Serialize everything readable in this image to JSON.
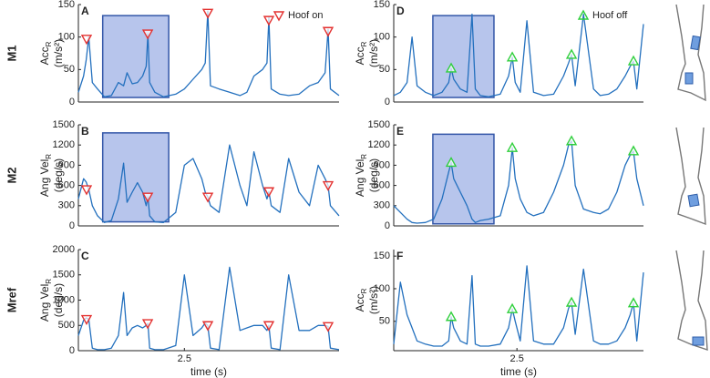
{
  "chart_data": [
    {
      "type": "line",
      "label": "A",
      "row_label": "M1",
      "ylabel": "Acc",
      "ylabel_sub": "R",
      "ylabel_unit": "(m/s²)",
      "xlim": [
        1.89,
        3.39
      ],
      "ylim": [
        0,
        150
      ],
      "yticks": [
        0,
        50,
        100,
        150
      ],
      "highlight_x": [
        2.03,
        2.41
      ],
      "highlight_y": [
        7,
        133
      ],
      "highlight_color": "#b7c5ec",
      "x": [
        1.89,
        1.92,
        1.935,
        1.95,
        1.97,
        2.0,
        2.04,
        2.08,
        2.12,
        2.15,
        2.17,
        2.2,
        2.23,
        2.26,
        2.28,
        2.29,
        2.3,
        2.33,
        2.38,
        2.45,
        2.5,
        2.55,
        2.6,
        2.62,
        2.635,
        2.65,
        2.7,
        2.76,
        2.82,
        2.86,
        2.9,
        2.95,
        2.975,
        2.986,
        3.0,
        3.05,
        3.1,
        3.16,
        3.22,
        3.27,
        3.31,
        3.327,
        3.34,
        3.39
      ],
      "series": [
        {
          "color": "#2370be",
          "values": [
            15,
            40,
            65,
            100,
            30,
            20,
            8,
            10,
            30,
            25,
            45,
            28,
            30,
            40,
            55,
            105,
            30,
            15,
            8,
            12,
            20,
            35,
            50,
            60,
            140,
            25,
            20,
            15,
            10,
            15,
            40,
            50,
            60,
            130,
            20,
            12,
            10,
            12,
            25,
            30,
            45,
            112,
            20,
            10
          ]
        },
        {
          "name": "Hoof on",
          "color": "#e3302f",
          "marker": "triangle-down",
          "x": [
            1.937,
            2.289,
            2.635,
            2.986,
            3.327
          ],
          "values": [
            97,
            105,
            137,
            126,
            109
          ]
        }
      ]
    },
    {
      "type": "line",
      "label": "B",
      "row_label": "M2",
      "ylabel": "Ang Vel",
      "ylabel_sub": "R",
      "ylabel_unit": "(deg/s)",
      "xlim": [
        1.89,
        3.39
      ],
      "ylim": [
        0,
        1500
      ],
      "yticks": [
        0,
        300,
        600,
        900,
        1200,
        1500
      ],
      "highlight_x": [
        2.03,
        2.41
      ],
      "highlight_y": [
        60,
        1380
      ],
      "highlight_color": "#b7c5ec",
      "x": [
        1.89,
        1.92,
        1.935,
        1.95,
        1.97,
        2.0,
        2.04,
        2.08,
        2.12,
        2.15,
        2.17,
        2.2,
        2.23,
        2.26,
        2.28,
        2.29,
        2.3,
        2.33,
        2.38,
        2.45,
        2.5,
        2.55,
        2.6,
        2.62,
        2.635,
        2.65,
        2.7,
        2.76,
        2.82,
        2.86,
        2.9,
        2.95,
        2.975,
        2.986,
        3.0,
        3.05,
        3.1,
        3.16,
        3.22,
        3.27,
        3.31,
        3.327,
        3.34,
        3.39
      ],
      "series": [
        {
          "color": "#2370be",
          "values": [
            400,
            700,
            650,
            540,
            300,
            150,
            50,
            80,
            400,
            930,
            350,
            500,
            640,
            500,
            300,
            430,
            150,
            60,
            50,
            200,
            900,
            1000,
            700,
            500,
            430,
            300,
            200,
            1200,
            600,
            300,
            1100,
            600,
            400,
            510,
            300,
            200,
            1000,
            500,
            300,
            900,
            700,
            600,
            300,
            150
          ]
        },
        {
          "color": "#e3302f",
          "marker": "triangle-down",
          "x": [
            1.937,
            2.289,
            2.635,
            2.986,
            3.327
          ],
          "values": [
            540,
            430,
            430,
            510,
            600
          ]
        }
      ]
    },
    {
      "type": "line",
      "label": "C",
      "row_label": "Mref",
      "ylabel": "Ang Vel",
      "ylabel_sub": "R",
      "ylabel_unit": "(deg/s)",
      "xlabel": "time (s)",
      "xlim": [
        1.89,
        3.39
      ],
      "ylim": [
        0,
        2000
      ],
      "yticks": [
        0,
        500,
        1000,
        1500,
        2000
      ],
      "xticks": [
        2.5
      ],
      "x": [
        1.89,
        1.92,
        1.935,
        1.95,
        1.97,
        2.0,
        2.04,
        2.08,
        2.12,
        2.15,
        2.17,
        2.2,
        2.23,
        2.26,
        2.28,
        2.29,
        2.3,
        2.33,
        2.38,
        2.45,
        2.5,
        2.55,
        2.6,
        2.62,
        2.635,
        2.65,
        2.7,
        2.76,
        2.82,
        2.86,
        2.9,
        2.95,
        2.975,
        2.986,
        3.0,
        3.05,
        3.1,
        3.16,
        3.22,
        3.27,
        3.31,
        3.327,
        3.34,
        3.39
      ],
      "series": [
        {
          "color": "#2370be",
          "values": [
            300,
            600,
            650,
            620,
            50,
            20,
            20,
            50,
            300,
            1150,
            300,
            450,
            500,
            450,
            500,
            540,
            50,
            20,
            20,
            100,
            1500,
            300,
            450,
            550,
            500,
            50,
            20,
            1650,
            400,
            450,
            500,
            500,
            400,
            500,
            50,
            20,
            1500,
            400,
            400,
            500,
            500,
            480,
            50,
            20
          ]
        },
        {
          "color": "#e3302f",
          "marker": "triangle-down",
          "x": [
            1.937,
            2.289,
            2.635,
            2.986,
            3.327
          ],
          "values": [
            620,
            540,
            500,
            500,
            480
          ]
        }
      ]
    },
    {
      "type": "line",
      "label": "D",
      "ylabel": "Acc",
      "ylabel_sub": "R",
      "ylabel_unit": "(m/s²)",
      "xlim": [
        1.76,
        3.26
      ],
      "ylim": [
        0,
        150
      ],
      "yticks": [
        0,
        50,
        100,
        150
      ],
      "highlight_x": [
        1.995,
        2.362
      ],
      "highlight_y": [
        7,
        133
      ],
      "highlight_color": "#b7c5ec",
      "x": [
        1.76,
        1.8,
        1.84,
        1.87,
        1.9,
        1.95,
        2.0,
        2.05,
        2.09,
        2.105,
        2.12,
        2.16,
        2.2,
        2.23,
        2.25,
        2.28,
        2.33,
        2.4,
        2.45,
        2.472,
        2.49,
        2.52,
        2.56,
        2.6,
        2.66,
        2.72,
        2.78,
        2.81,
        2.828,
        2.85,
        2.9,
        2.96,
        3.0,
        3.05,
        3.1,
        3.15,
        3.18,
        3.2,
        3.22,
        3.26
      ],
      "series": [
        {
          "color": "#2370be",
          "values": [
            10,
            15,
            30,
            100,
            25,
            15,
            10,
            15,
            30,
            52,
            35,
            20,
            15,
            135,
            20,
            10,
            8,
            12,
            40,
            69,
            30,
            15,
            125,
            15,
            10,
            12,
            40,
            60,
            73,
            25,
            135,
            20,
            10,
            12,
            20,
            40,
            55,
            63,
            20,
            120
          ]
        },
        {
          "name": "Hoof off",
          "color": "#2fcf3c",
          "marker": "triangle-up",
          "x": [
            2.105,
            2.472,
            2.828,
            3.2
          ],
          "values": [
            52,
            69,
            73,
            63
          ]
        }
      ]
    },
    {
      "type": "line",
      "label": "E",
      "ylabel": "Ang Vel",
      "ylabel_sub": "R",
      "ylabel_unit": "(deg/s)",
      "xlim": [
        1.76,
        3.26
      ],
      "ylim": [
        0,
        1500
      ],
      "yticks": [
        0,
        300,
        600,
        900,
        1200,
        1500
      ],
      "highlight_x": [
        1.995,
        2.362
      ],
      "highlight_y": [
        30,
        1360
      ],
      "highlight_color": "#b7c5ec",
      "x": [
        1.76,
        1.8,
        1.84,
        1.87,
        1.9,
        1.95,
        2.0,
        2.05,
        2.09,
        2.105,
        2.12,
        2.16,
        2.2,
        2.23,
        2.25,
        2.28,
        2.33,
        2.4,
        2.45,
        2.472,
        2.49,
        2.52,
        2.56,
        2.6,
        2.66,
        2.72,
        2.78,
        2.81,
        2.828,
        2.85,
        2.9,
        2.96,
        3.0,
        3.05,
        3.1,
        3.15,
        3.18,
        3.2,
        3.22,
        3.26
      ],
      "series": [
        {
          "color": "#2370be",
          "values": [
            300,
            200,
            100,
            50,
            40,
            50,
            100,
            400,
            800,
            940,
            700,
            500,
            300,
            100,
            50,
            80,
            100,
            150,
            600,
            1160,
            700,
            400,
            200,
            150,
            200,
            500,
            900,
            1200,
            1260,
            600,
            250,
            200,
            180,
            250,
            500,
            900,
            1050,
            1110,
            700,
            300
          ]
        },
        {
          "color": "#2fcf3c",
          "marker": "triangle-up",
          "x": [
            2.105,
            2.472,
            2.828,
            3.2
          ],
          "values": [
            940,
            1160,
            1260,
            1110
          ]
        }
      ]
    },
    {
      "type": "line",
      "label": "F",
      "ylabel": "Acc",
      "ylabel_sub": "R",
      "ylabel_unit": "(m/s²)",
      "xlabel": "time (s)",
      "xlim": [
        1.76,
        3.26
      ],
      "ylim": [
        5,
        160
      ],
      "yticks": [
        50,
        100,
        150
      ],
      "xticks": [
        2.5
      ],
      "x": [
        1.76,
        1.8,
        1.84,
        1.87,
        1.9,
        1.95,
        2.0,
        2.05,
        2.09,
        2.105,
        2.12,
        2.16,
        2.2,
        2.23,
        2.25,
        2.28,
        2.33,
        2.4,
        2.45,
        2.472,
        2.49,
        2.52,
        2.56,
        2.6,
        2.66,
        2.72,
        2.78,
        2.81,
        2.828,
        2.85,
        2.9,
        2.96,
        3.0,
        3.05,
        3.1,
        3.15,
        3.18,
        3.2,
        3.22,
        3.26
      ],
      "series": [
        {
          "color": "#2370be",
          "values": [
            15,
            110,
            60,
            40,
            20,
            15,
            12,
            12,
            20,
            57,
            40,
            20,
            15,
            120,
            15,
            12,
            12,
            15,
            40,
            69,
            50,
            20,
            135,
            20,
            15,
            15,
            40,
            70,
            79,
            30,
            130,
            20,
            15,
            15,
            20,
            40,
            60,
            78,
            20,
            125
          ]
        },
        {
          "color": "#2fcf3c",
          "marker": "triangle-up",
          "x": [
            2.105,
            2.472,
            2.828,
            3.2
          ],
          "values": [
            57,
            69,
            79,
            78
          ]
        }
      ]
    }
  ]
}
